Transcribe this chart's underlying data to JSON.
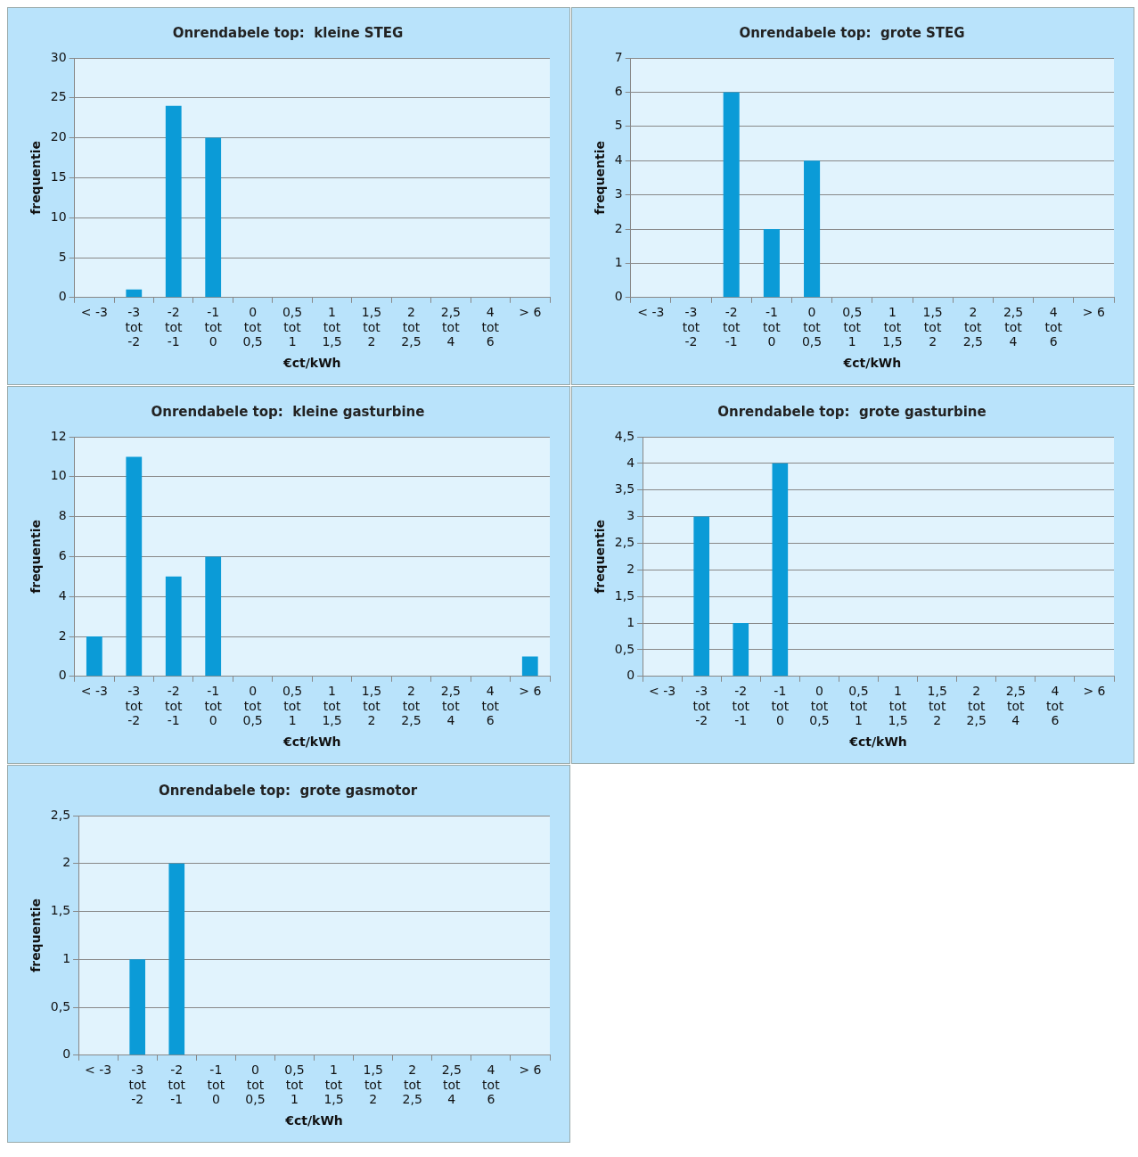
{
  "chart_data": [
    {
      "type": "bar",
      "title": "Onrendabele top:  kleine STEG",
      "xlabel": "€ct/kWh",
      "ylabel": "frequentie",
      "categories": [
        "< -3",
        "-3 tot -2",
        "-2 tot -1",
        "-1 tot 0",
        "0 tot 0,5",
        "0,5 tot 1",
        "1 tot 1,5",
        "1,5 tot 2",
        "2 tot 2,5",
        "2,5 tot 4",
        "4 tot 6",
        "> 6"
      ],
      "series": [
        {
          "color": "#0b9bd7",
          "values": [
            0,
            1,
            24,
            20,
            0,
            0,
            0,
            0,
            0,
            0,
            0,
            0
          ]
        }
      ],
      "ylim": [
        0,
        30
      ],
      "yticks": [
        0,
        5,
        10,
        15,
        20,
        25,
        30
      ],
      "grid": "y"
    },
    {
      "type": "bar",
      "title": "Onrendabele top:  grote STEG",
      "xlabel": "€ct/kWh",
      "ylabel": "frequentie",
      "categories": [
        "< -3",
        "-3 tot -2",
        "-2 tot -1",
        "-1 tot 0",
        "0 tot 0,5",
        "0,5 tot 1",
        "1 tot 1,5",
        "1,5 tot 2",
        "2 tot 2,5",
        "2,5 tot 4",
        "4 tot 6",
        "> 6"
      ],
      "series": [
        {
          "color": "#0b9bd7",
          "values": [
            0,
            0,
            6,
            2,
            4,
            0,
            0,
            0,
            0,
            0,
            0,
            0
          ]
        }
      ],
      "ylim": [
        0,
        7
      ],
      "yticks": [
        0,
        1,
        2,
        3,
        4,
        5,
        6,
        7
      ],
      "grid": "y"
    },
    {
      "type": "bar",
      "title": "Onrendabele top:  kleine gasturbine",
      "xlabel": "€ct/kWh",
      "ylabel": "frequentie",
      "categories": [
        "< -3",
        "-3 tot -2",
        "-2 tot -1",
        "-1 tot 0",
        "0 tot 0,5",
        "0,5 tot 1",
        "1 tot 1,5",
        "1,5 tot 2",
        "2 tot 2,5",
        "2,5 tot 4",
        "4 tot 6",
        "> 6"
      ],
      "series": [
        {
          "color": "#0b9bd7",
          "values": [
            2,
            11,
            5,
            6,
            0,
            0,
            0,
            0,
            0,
            0,
            0,
            1
          ]
        }
      ],
      "ylim": [
        0,
        12
      ],
      "yticks": [
        0,
        2,
        4,
        6,
        8,
        10,
        12
      ],
      "grid": "y"
    },
    {
      "type": "bar",
      "title": "Onrendabele top:  grote gasturbine",
      "xlabel": "€ct/kWh",
      "ylabel": "frequentie",
      "categories": [
        "< -3",
        "-3 tot -2",
        "-2 tot -1",
        "-1 tot 0",
        "0 tot 0,5",
        "0,5 tot 1",
        "1 tot 1,5",
        "1,5 tot 2",
        "2 tot 2,5",
        "2,5 tot 4",
        "4 tot 6",
        "> 6"
      ],
      "series": [
        {
          "color": "#0b9bd7",
          "values": [
            0,
            3,
            1,
            4,
            0,
            0,
            0,
            0,
            0,
            0,
            0,
            0
          ]
        }
      ],
      "ylim": [
        0,
        4.5
      ],
      "yticks": [
        0,
        {
          "value": 0.5,
          "label": "0,5"
        },
        1,
        {
          "value": 1.5,
          "label": "1,5"
        },
        2,
        {
          "value": 2.5,
          "label": "2,5"
        },
        3,
        {
          "value": 3.5,
          "label": "3,5"
        },
        4,
        {
          "value": 4.5,
          "label": "4,5"
        }
      ],
      "grid": "y"
    },
    {
      "type": "bar",
      "title": "Onrendabele top:  grote gasmotor",
      "xlabel": "€ct/kWh",
      "ylabel": "frequentie",
      "categories": [
        "< -3",
        "-3 tot -2",
        "-2 tot -1",
        "-1 tot 0",
        "0 tot 0,5",
        "0,5 tot 1",
        "1 tot 1,5",
        "1,5 tot 2",
        "2 tot 2,5",
        "2,5 tot 4",
        "4 tot 6",
        "> 6"
      ],
      "series": [
        {
          "color": "#0b9bd7",
          "values": [
            0,
            1,
            2,
            0,
            0,
            0,
            0,
            0,
            0,
            0,
            0,
            0
          ]
        }
      ],
      "ylim": [
        0,
        2.5
      ],
      "yticks": [
        0,
        {
          "value": 0.5,
          "label": "0,5"
        },
        1,
        {
          "value": 1.5,
          "label": "1,5"
        },
        2,
        {
          "value": 2.5,
          "label": "2,5"
        }
      ],
      "grid": "y"
    }
  ]
}
